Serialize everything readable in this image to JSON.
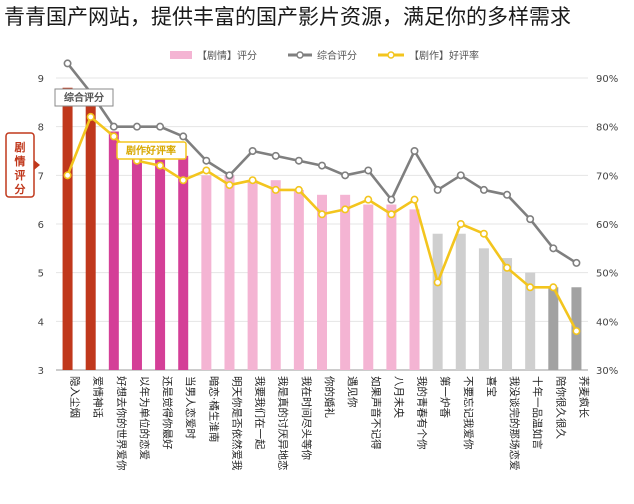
{
  "overlay_text": "青青国产网站，提供丰富的国产影片资源，满足你的多样需求",
  "chart_data": {
    "type": "bar",
    "title": "",
    "legend": {
      "position": "top",
      "items": [
        "【剧情】评分",
        "综合评分",
        "【剧作】好评率"
      ]
    },
    "annotations": {
      "left_axis_label": "剧情评分",
      "line_label_score": "综合评分",
      "line_label_rate": "剧作好评率"
    },
    "ylim_left": [
      3,
      9
    ],
    "ylim_right": [
      30,
      90
    ],
    "left_ticks": [
      3,
      4,
      5,
      6,
      7,
      8,
      9
    ],
    "right_ticks": [
      "30%",
      "40%",
      "50%",
      "60%",
      "70%",
      "80%",
      "90%"
    ],
    "grid": true,
    "categories": [
      "隐入尘烟",
      "爱情神话",
      "好想去你的世界爱你",
      "以年为单位的恋爱",
      "还是觉得你最好",
      "当男人恋爱时",
      "暗恋·橘生淮南",
      "明天你是否依然爱我",
      "我要我们在一起",
      "我是真的讨厌异地恋",
      "我在时间尽头等你",
      "你的婚礼",
      "遇见你",
      "如果声音不记得",
      "八月未央",
      "我的青春有个你",
      "第一炉香",
      "不要忘记我爱你",
      "喜宝",
      "我没谈完的那场恋爱",
      "十年一品温如言",
      "陪你很久很久",
      "荞麦疯长"
    ],
    "colors": {
      "bar_red": "#c0381c",
      "bar_magenta": "#d43f97",
      "bar_pink": "#f4b4d3",
      "bar_lightgray": "#cfcfcf",
      "bar_darkgray": "#a2a2a2",
      "line_gray": "#7f7f7f",
      "line_yellow": "#f3c51e"
    },
    "series": [
      {
        "name": "【剧情】评分",
        "values": [
          8.8,
          8.7,
          7.9,
          7.6,
          7.5,
          7.4,
          7.0,
          7.0,
          6.9,
          6.9,
          6.7,
          6.6,
          6.6,
          6.4,
          6.4,
          6.3,
          5.8,
          5.8,
          5.5,
          5.3,
          5.0,
          4.7,
          4.7
        ],
        "bar_colors": [
          "bar_red",
          "bar_red",
          "bar_magenta",
          "bar_magenta",
          "bar_magenta",
          "bar_magenta",
          "bar_pink",
          "bar_pink",
          "bar_pink",
          "bar_pink",
          "bar_pink",
          "bar_pink",
          "bar_pink",
          "bar_pink",
          "bar_pink",
          "bar_pink",
          "bar_lightgray",
          "bar_lightgray",
          "bar_lightgray",
          "bar_lightgray",
          "bar_lightgray",
          "bar_darkgray",
          "bar_darkgray"
        ]
      },
      {
        "name": "综合评分",
        "axis": "left",
        "values": [
          9.3,
          8.7,
          8.0,
          8.0,
          8.0,
          7.8,
          7.3,
          7.0,
          7.5,
          7.4,
          7.3,
          7.2,
          7.0,
          7.1,
          6.5,
          7.5,
          6.7,
          7.0,
          6.7,
          6.6,
          6.1,
          5.5,
          5.2
        ]
      },
      {
        "name": "【剧作】好评率",
        "axis": "right",
        "values": [
          70,
          82,
          78,
          73,
          72,
          69,
          71,
          68,
          69,
          67,
          67,
          62,
          63,
          65,
          62,
          65,
          48,
          60,
          58,
          51,
          47,
          47,
          38
        ]
      }
    ]
  }
}
